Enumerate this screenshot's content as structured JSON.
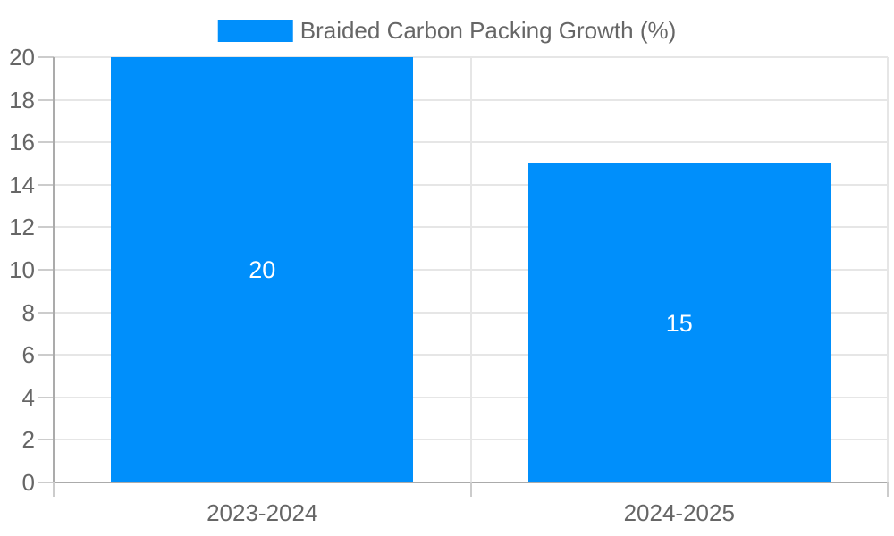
{
  "chart": {
    "legend": {
      "label": "Braided Carbon Packing Growth (%)"
    },
    "colors": {
      "bar": "#008FFB",
      "text": "#666666",
      "value_label": "#FFFFFF",
      "grid": "#E6E6E6",
      "axis": "#ABABAB",
      "tick": "#CCCCCC",
      "background": "#FFFFFF"
    }
  },
  "chart_data": {
    "type": "bar",
    "categories": [
      "2023-2024",
      "2024-2025"
    ],
    "series": [
      {
        "name": "Braided Carbon Packing Growth (%)",
        "values": [
          20,
          15
        ]
      }
    ],
    "title": "",
    "xlabel": "",
    "ylabel": "",
    "ylim": [
      0,
      20
    ],
    "ytick_step": 2,
    "grid": "horizontal-light",
    "legend_position": "top",
    "value_labels_position": "center-inside",
    "bar_color": "#008FFB"
  }
}
